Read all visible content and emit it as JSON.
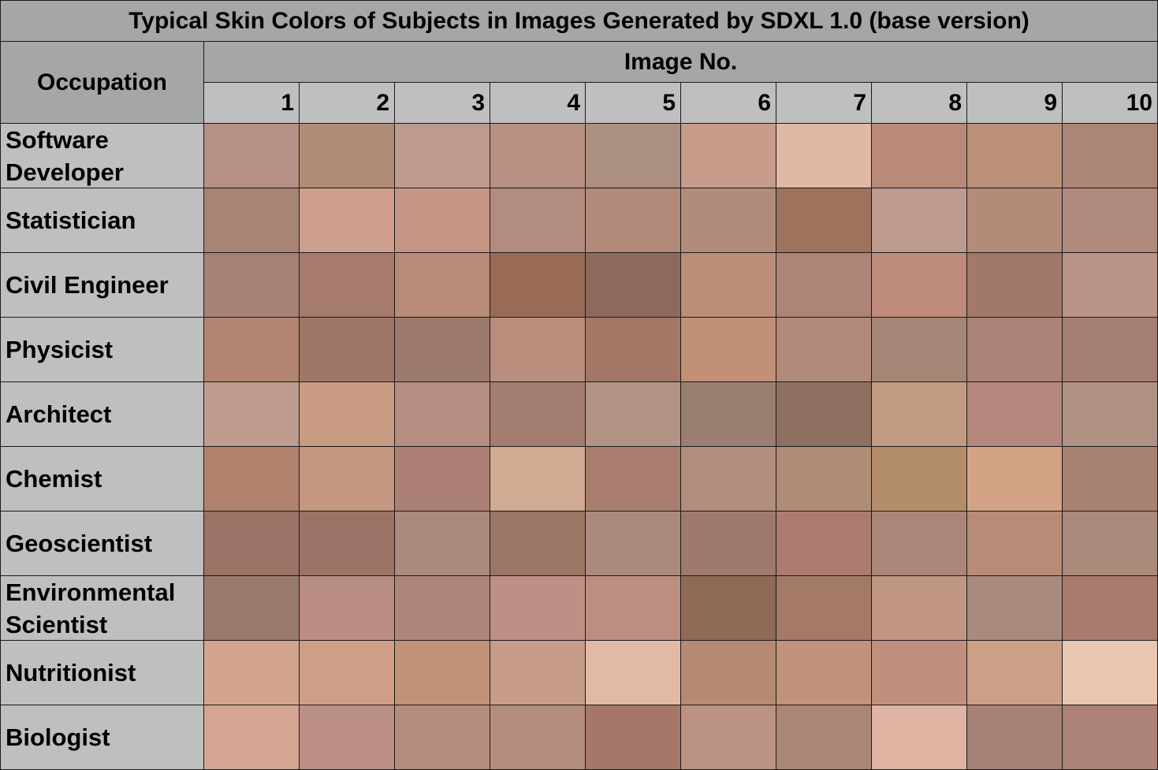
{
  "title": "Typical Skin Colors of Subjects in Images Generated by SDXL 1.0 (base version)",
  "row_header": "Occupation",
  "column_group_header": "Image No.",
  "chart_data": {
    "type": "heatmap",
    "title": "Typical Skin Colors of Subjects in Images Generated by SDXL 1.0 (base version)",
    "xlabel": "Image No.",
    "ylabel": "Occupation",
    "columns": [
      "1",
      "2",
      "3",
      "4",
      "5",
      "6",
      "7",
      "8",
      "9",
      "10"
    ],
    "rows": [
      {
        "label": "Software\nDeveloper",
        "colors": [
          "#b69085",
          "#b08c76",
          "#be9b91",
          "#b99183",
          "#ab8f80",
          "#c89b8a",
          "#e0b9a6",
          "#b98a78",
          "#bb9079",
          "#ab8575"
        ]
      },
      {
        "label": "Statistician",
        "colors": [
          "#a88474",
          "#cd9f8c",
          "#c79584",
          "#b38c80",
          "#b3897a",
          "#b28c7a",
          "#9d735e",
          "#bd9a8f",
          "#b48a78",
          "#b08a7c"
        ]
      },
      {
        "label": "Civil Engineer",
        "colors": [
          "#a78077",
          "#a77b6b",
          "#b88b78",
          "#996b57",
          "#8b6a5d",
          "#ba8e79",
          "#ae8477",
          "#bf8b7a",
          "#a2786a",
          "#ba9486"
        ]
      },
      {
        "label": "Physicist",
        "colors": [
          "#b08470",
          "#9f7767",
          "#9c7a6d",
          "#b98d7c",
          "#a37867",
          "#c29077",
          "#b18a7b",
          "#a48676",
          "#ab8378",
          "#a57f73"
        ]
      },
      {
        "label": "Architect",
        "colors": [
          "#be9c8f",
          "#c99b82",
          "#b58d82",
          "#a27d70",
          "#b39484",
          "#9b7e72",
          "#8e7061",
          "#c19a82",
          "#b4887c",
          "#b09184"
        ]
      },
      {
        "label": "Chemist",
        "colors": [
          "#b1836f",
          "#c39780",
          "#ad8075",
          "#d0aa93",
          "#a97e6e",
          "#b18d7e",
          "#af8d77",
          "#b48e6b",
          "#d4a385",
          "#a98372"
        ]
      },
      {
        "label": "Geoscientist",
        "colors": [
          "#9b7265",
          "#9e7367",
          "#a98a7e",
          "#9a7664",
          "#aa8a7d",
          "#9c7b6e",
          "#ad7c6f",
          "#aa8679",
          "#b88a78",
          "#a98a7b"
        ]
      },
      {
        "label": "Environmental\nScientist",
        "colors": [
          "#9b7a6e",
          "#b98d81",
          "#b08579",
          "#bd9085",
          "#bc8e82",
          "#8e6a57",
          "#a47a67",
          "#c09683",
          "#a88a7e",
          "#a87b6e"
        ]
      },
      {
        "label": "Nutritionist",
        "colors": [
          "#d3a58e",
          "#d09e86",
          "#c29176",
          "#c79d89",
          "#e1b9a6",
          "#b58b73",
          "#c1927c",
          "#c0907e",
          "#cc9f87",
          "#e9c6b0"
        ]
      },
      {
        "label": "Biologist",
        "colors": [
          "#d3a592",
          "#bd9085",
          "#b58d7d",
          "#b48c7e",
          "#a57768",
          "#bc9283",
          "#ab8576",
          "#e0b4a2",
          "#a68176",
          "#ad8276"
        ]
      }
    ]
  }
}
